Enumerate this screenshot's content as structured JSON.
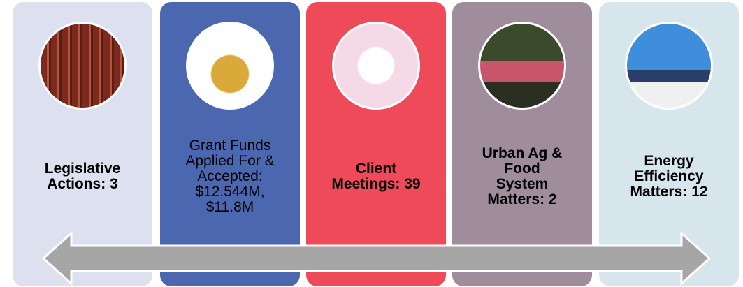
{
  "cards": [
    {
      "lines": [
        "Legislative",
        "Actions: 3"
      ],
      "bold": true,
      "color": "#dde0ee"
    },
    {
      "lines": [
        "Grant Funds",
        "Applied For &",
        "Accepted:",
        "$12.544M,",
        "$11.8M"
      ],
      "bold": false,
      "color": "#4a67b0"
    },
    {
      "lines": [
        "Client",
        "Meetings: 39"
      ],
      "bold": true,
      "color": "#ef4a5a"
    },
    {
      "lines": [
        "Urban Ag &",
        "Food",
        "System",
        "Matters: 2"
      ],
      "bold": true,
      "color": "#9f8d9c"
    },
    {
      "lines": [
        "Energy",
        "Efficiency",
        "Matters: 12"
      ],
      "bold": true,
      "color": "#d6e6ec"
    }
  ]
}
